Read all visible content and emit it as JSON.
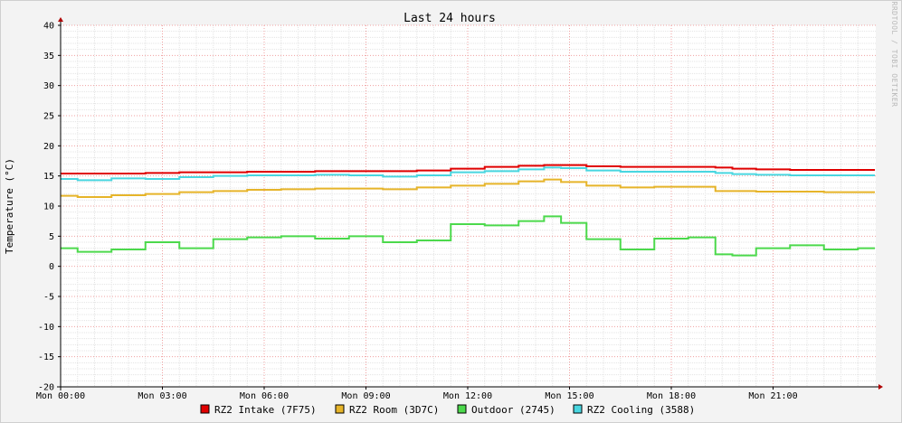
{
  "chart_data": {
    "type": "line",
    "title": "Last 24 hours",
    "xlabel": "",
    "ylabel": "Temperature (°C)",
    "ylim": [
      -20,
      40
    ],
    "yticks": [
      40,
      35,
      30,
      25,
      20,
      15,
      10,
      5,
      0,
      -5,
      -10,
      -15,
      -20
    ],
    "xlim": [
      0,
      24
    ],
    "xticks": [
      {
        "h": 0,
        "label": "Mon 00:00"
      },
      {
        "h": 3,
        "label": "Mon 03:00"
      },
      {
        "h": 6,
        "label": "Mon 06:00"
      },
      {
        "h": 9,
        "label": "Mon 09:00"
      },
      {
        "h": 12,
        "label": "Mon 12:00"
      },
      {
        "h": 15,
        "label": "Mon 15:00"
      },
      {
        "h": 18,
        "label": "Mon 18:00"
      },
      {
        "h": 21,
        "label": "Mon 21:00"
      }
    ],
    "grid": true,
    "legend": "bottom",
    "watermark": "RRDTOOL / TOBI OETIKER",
    "x": [
      0,
      1,
      2,
      3,
      4,
      5,
      6,
      7,
      8,
      9,
      10,
      11,
      12,
      13,
      14,
      14.5,
      15,
      16,
      17,
      18,
      19,
      19.6,
      20,
      21,
      22,
      23,
      24
    ],
    "series": [
      {
        "name": "RZ2 Intake (7F75)",
        "color": "#e00000",
        "values": [
          15.4,
          15.4,
          15.4,
          15.5,
          15.6,
          15.6,
          15.7,
          15.7,
          15.8,
          15.8,
          15.8,
          15.9,
          16.2,
          16.5,
          16.7,
          16.8,
          16.8,
          16.6,
          16.5,
          16.5,
          16.5,
          16.4,
          16.2,
          16.1,
          16.0,
          16.0,
          16.0
        ]
      },
      {
        "name": "RZ2 Room (3D7C)",
        "color": "#e6b429",
        "values": [
          11.7,
          11.5,
          11.8,
          12.0,
          12.3,
          12.5,
          12.7,
          12.8,
          12.9,
          12.9,
          12.8,
          13.1,
          13.4,
          13.7,
          14.1,
          14.4,
          14.0,
          13.4,
          13.1,
          13.2,
          13.2,
          12.5,
          12.5,
          12.4,
          12.4,
          12.3,
          12.3
        ]
      },
      {
        "name": "Outdoor (2745)",
        "color": "#4cd94c",
        "values": [
          3.0,
          2.4,
          2.8,
          4.0,
          3.0,
          4.5,
          4.8,
          5.0,
          4.6,
          5.0,
          4.0,
          4.3,
          7.0,
          6.8,
          7.5,
          8.3,
          7.2,
          4.5,
          2.8,
          4.6,
          4.8,
          2.0,
          1.8,
          3.0,
          3.5,
          2.8,
          3.0
        ]
      },
      {
        "name": "RZ2 Cooling (3588)",
        "color": "#49d6e0",
        "values": [
          14.5,
          14.3,
          14.6,
          14.5,
          14.8,
          15.0,
          15.1,
          15.1,
          15.2,
          15.1,
          14.9,
          15.1,
          15.6,
          15.8,
          16.1,
          16.4,
          16.3,
          15.9,
          15.7,
          15.7,
          15.7,
          15.5,
          15.3,
          15.2,
          15.1,
          15.1,
          15.1
        ]
      }
    ]
  }
}
